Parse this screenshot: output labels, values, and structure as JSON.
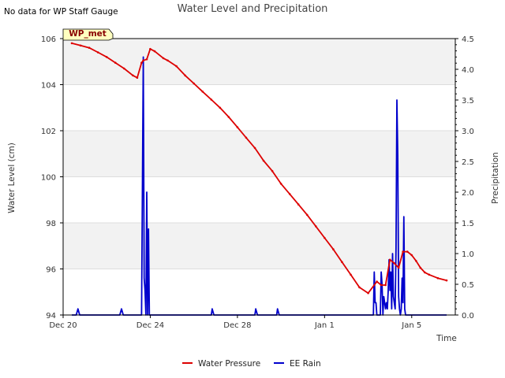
{
  "notice": "No data for WP Staff Gauge",
  "station_label": "WP_met",
  "colors": {
    "water": "#dd0000",
    "rain": "#0000cc",
    "band": "#f2f2f2",
    "grid": "#dddddd",
    "station_fill": "#ffffc0",
    "station_text": "#880000"
  },
  "chart_data": {
    "type": "line",
    "title": "Water Level and Precipitation",
    "xlabel": "Time",
    "ylabel_left": "Water Level (cm)",
    "ylabel_right": "Precipitation",
    "x_unit": "days since Dec 20",
    "xlim": [
      0,
      45
    ],
    "ylim_left": [
      94,
      106
    ],
    "ylim_right": [
      0,
      4.5
    ],
    "x_ticks": [
      {
        "x": 0,
        "label": "Dec 20"
      },
      {
        "x": 10,
        "label": "Dec 24"
      },
      {
        "x": 20,
        "label": "Dec 28"
      },
      {
        "x": 30,
        "label": "Jan 1"
      },
      {
        "x": 40,
        "label": "Jan 5"
      }
    ],
    "y_ticks_left": [
      94,
      96,
      98,
      100,
      102,
      104,
      106
    ],
    "y_ticks_right": [
      {
        "v": 0,
        "label": "0.0"
      },
      {
        "v": 0.5,
        "label": "0.5"
      },
      {
        "v": 1,
        "label": "1.0"
      },
      {
        "v": 1.5,
        "label": "1.5"
      },
      {
        "v": 2,
        "label": "2.0"
      },
      {
        "v": 2.5,
        "label": "2.5"
      },
      {
        "v": 3,
        "label": "3.0"
      },
      {
        "v": 3.5,
        "label": "3.5"
      },
      {
        "v": 4,
        "label": "4.0"
      },
      {
        "v": 4.5,
        "label": "4.5"
      }
    ],
    "series": [
      {
        "name": "Water Pressure",
        "axis": "left",
        "x": [
          1.0,
          2.0,
          3.0,
          4.0,
          5.0,
          6.0,
          7.0,
          8.0,
          8.5,
          9.0,
          9.2,
          9.6,
          10.0,
          10.5,
          11.5,
          12.0,
          13.0,
          14.0,
          15.0,
          16.0,
          17.0,
          18.0,
          19.0,
          20.0,
          21.0,
          22.0,
          23.0,
          24.0,
          25.0,
          26.0,
          27.0,
          28.0,
          29.0,
          30.0,
          31.0,
          32.0,
          33.0,
          34.0,
          35.0,
          36.0,
          36.5,
          37.0,
          37.5,
          38.0,
          38.5,
          39.0,
          39.5,
          40.0,
          40.5,
          41.0,
          41.5,
          42.0,
          43.0,
          44.0
        ],
        "y": [
          105.8,
          105.7,
          105.6,
          105.4,
          105.2,
          104.95,
          104.7,
          104.4,
          104.3,
          104.95,
          105.05,
          105.1,
          105.55,
          105.45,
          105.15,
          105.05,
          104.8,
          104.4,
          104.05,
          103.7,
          103.35,
          103.0,
          102.6,
          102.15,
          101.7,
          101.25,
          100.7,
          100.25,
          99.7,
          99.25,
          98.8,
          98.35,
          97.85,
          97.35,
          96.85,
          96.3,
          95.75,
          95.2,
          94.95,
          95.45,
          95.3,
          95.3,
          96.4,
          96.25,
          96.05,
          96.75,
          96.75,
          96.6,
          96.35,
          96.05,
          95.85,
          95.75,
          95.6,
          95.5
        ]
      },
      {
        "name": "EE Rain",
        "axis": "right",
        "x": [
          1.0,
          1.5,
          1.7,
          1.9,
          6.5,
          6.7,
          6.9,
          9.0,
          9.1,
          9.2,
          9.3,
          9.4,
          9.5,
          9.6,
          9.7,
          9.8,
          9.9,
          10.0,
          10.1,
          10.2,
          10.3,
          10.4,
          10.6,
          10.8,
          17.0,
          17.1,
          17.3,
          22.0,
          22.1,
          22.3,
          24.5,
          24.6,
          24.8,
          35.6,
          35.7,
          35.8,
          35.9,
          36.0,
          36.1,
          36.4,
          36.5,
          36.6,
          36.7,
          36.8,
          36.9,
          37.0,
          37.1,
          37.2,
          37.3,
          37.4,
          37.5,
          37.6,
          37.7,
          37.8,
          37.9,
          38.0,
          38.1,
          38.2,
          38.3,
          38.4,
          38.5,
          38.6,
          38.7,
          38.8,
          38.9,
          39.0,
          39.1,
          39.2,
          39.3,
          39.4,
          39.5,
          39.6,
          39.7,
          39.8,
          39.9,
          40.0,
          40.1,
          40.2,
          40.3,
          40.4,
          40.5,
          40.6,
          40.7,
          40.8,
          40.9,
          41.0,
          41.1,
          41.3,
          44.0
        ],
        "y": [
          0,
          0,
          0.1,
          0,
          0,
          0.1,
          0,
          0,
          2.1,
          4.2,
          0.6,
          0.4,
          0,
          2.0,
          0,
          1.4,
          0,
          0,
          0,
          0,
          0,
          0,
          0,
          0,
          0,
          0.1,
          0,
          0,
          0.1,
          0,
          0,
          0.1,
          0,
          0,
          0.7,
          0.2,
          0.2,
          0,
          0,
          0,
          0.7,
          0.5,
          0,
          0.3,
          0.2,
          0.1,
          0.2,
          0.1,
          0.4,
          0.9,
          0.4,
          0.7,
          0.1,
          1.0,
          0.3,
          0.2,
          0.1,
          1.1,
          3.5,
          2.6,
          0.3,
          0.1,
          0,
          0.1,
          0.6,
          0.2,
          1.6,
          0.1,
          0,
          0,
          0,
          0,
          0,
          0,
          0,
          0,
          0,
          0,
          0,
          0,
          0,
          0,
          0,
          0,
          0,
          0,
          0,
          0,
          0
        ]
      }
    ],
    "legend": [
      {
        "name": "Water Pressure",
        "color": "#dd0000"
      },
      {
        "name": "EE Rain",
        "color": "#0000cc"
      }
    ],
    "legend_position": "bottom-center"
  }
}
